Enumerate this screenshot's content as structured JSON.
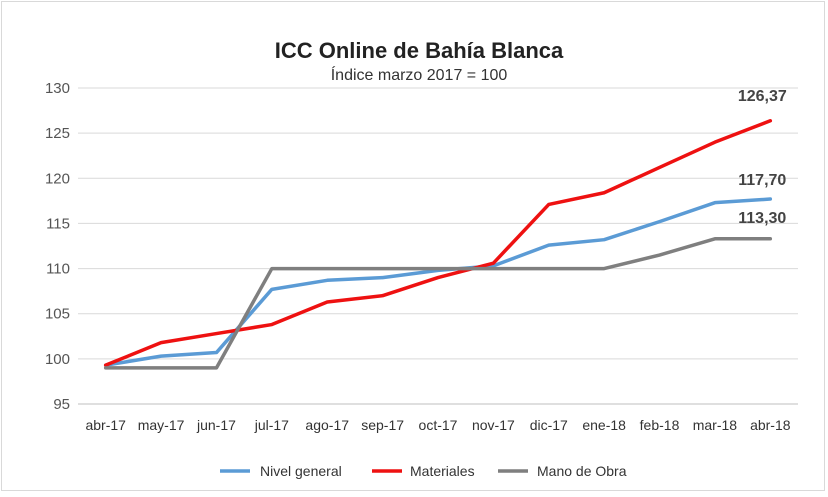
{
  "chart_data": {
    "type": "line",
    "title": "ICC Online de Bahía Blanca",
    "subtitle": "Índice marzo 2017 = 100",
    "xlabel": "",
    "ylabel": "",
    "ylim": [
      95,
      130
    ],
    "yticks": [
      95,
      100,
      105,
      110,
      115,
      120,
      125,
      130
    ],
    "grid": true,
    "legend_position": "bottom",
    "categories": [
      "abr-17",
      "may-17",
      "jun-17",
      "jul-17",
      "ago-17",
      "sep-17",
      "oct-17",
      "nov-17",
      "dic-17",
      "ene-18",
      "feb-18",
      "mar-18",
      "abr-18"
    ],
    "series": [
      {
        "name": "Nivel general",
        "color": "#5b9bd5",
        "values": [
          99.3,
          100.3,
          100.7,
          107.7,
          108.7,
          109.0,
          109.8,
          110.3,
          112.6,
          113.2,
          115.2,
          117.3,
          117.7
        ],
        "end_label": "117,70"
      },
      {
        "name": "Materiales",
        "color": "#ee1111",
        "values": [
          99.3,
          101.8,
          102.8,
          103.8,
          106.3,
          107.0,
          109.0,
          110.6,
          117.1,
          118.4,
          121.2,
          124.0,
          126.37
        ],
        "end_label": "126,37"
      },
      {
        "name": "Mano de Obra",
        "color": "#7f7f7f",
        "values": [
          99.0,
          99.0,
          99.0,
          110.0,
          110.0,
          110.0,
          110.0,
          110.0,
          110.0,
          110.0,
          111.5,
          113.3,
          113.3
        ],
        "end_label": "113,30"
      }
    ]
  }
}
